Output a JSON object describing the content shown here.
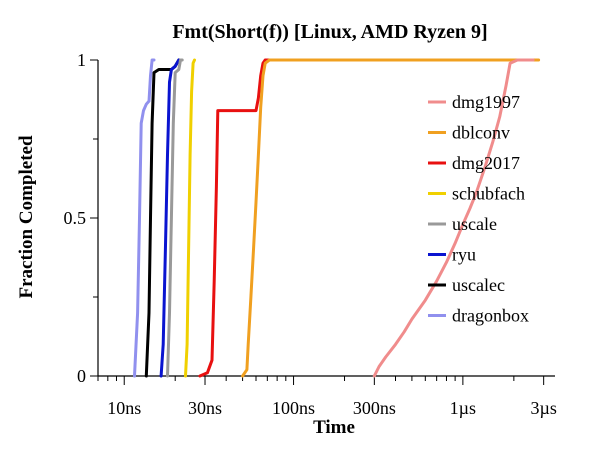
{
  "chart_data": {
    "type": "line",
    "title": "Fmt(Short(f)) [Linux, AMD Ryzen 9]",
    "xlabel": "Time",
    "ylabel": "Fraction Completed",
    "x_scale": "log",
    "x_unit": "ns",
    "xlim": [
      7,
      3500
    ],
    "ylim": [
      0,
      1
    ],
    "x_ticks": [
      {
        "value": 10,
        "label": "10ns"
      },
      {
        "value": 30,
        "label": "30ns"
      },
      {
        "value": 100,
        "label": "100ns"
      },
      {
        "value": 300,
        "label": "300ns"
      },
      {
        "value": 1000,
        "label": "1µs"
      },
      {
        "value": 3000,
        "label": "3µs"
      }
    ],
    "y_ticks": [
      {
        "value": 0,
        "label": "0"
      },
      {
        "value": 0.5,
        "label": "0.5"
      },
      {
        "value": 1,
        "label": "1"
      }
    ],
    "legend_position": "right",
    "series": [
      {
        "name": "dmg1997",
        "color": "#f08c8c",
        "points": [
          [
            300,
            0
          ],
          [
            320,
            0.03
          ],
          [
            350,
            0.06
          ],
          [
            400,
            0.1
          ],
          [
            450,
            0.14
          ],
          [
            500,
            0.18
          ],
          [
            600,
            0.24
          ],
          [
            700,
            0.3
          ],
          [
            800,
            0.36
          ],
          [
            900,
            0.42
          ],
          [
            1000,
            0.48
          ],
          [
            1100,
            0.53
          ],
          [
            1200,
            0.58
          ],
          [
            1350,
            0.66
          ],
          [
            1500,
            0.74
          ],
          [
            1650,
            0.82
          ],
          [
            1800,
            0.92
          ],
          [
            1900,
            0.99
          ],
          [
            2100,
            1
          ],
          [
            2600,
            1
          ]
        ]
      },
      {
        "name": "dblconv",
        "color": "#f0a020",
        "points": [
          [
            50,
            0
          ],
          [
            53,
            0.02
          ],
          [
            54,
            0.1
          ],
          [
            56,
            0.25
          ],
          [
            58,
            0.4
          ],
          [
            60,
            0.55
          ],
          [
            62,
            0.7
          ],
          [
            64,
            0.85
          ],
          [
            66,
            0.95
          ],
          [
            68,
            0.99
          ],
          [
            72,
            1
          ],
          [
            300,
            1
          ],
          [
            1000,
            1
          ],
          [
            2000,
            1
          ],
          [
            2800,
            1
          ]
        ]
      },
      {
        "name": "dmg2017",
        "color": "#e81010",
        "points": [
          [
            28,
            0
          ],
          [
            31,
            0.01
          ],
          [
            33,
            0.05
          ],
          [
            34,
            0.3
          ],
          [
            35,
            0.6
          ],
          [
            35.7,
            0.84
          ],
          [
            40,
            0.84
          ],
          [
            55,
            0.84
          ],
          [
            60,
            0.84
          ],
          [
            62,
            0.88
          ],
          [
            64,
            0.95
          ],
          [
            66,
            0.99
          ],
          [
            68,
            1
          ],
          [
            300,
            1
          ]
        ]
      },
      {
        "name": "schubfach",
        "color": "#f0d000",
        "points": [
          [
            23,
            0
          ],
          [
            23.5,
            0.1
          ],
          [
            24,
            0.4
          ],
          [
            24.5,
            0.7
          ],
          [
            25,
            0.9
          ],
          [
            25.5,
            0.99
          ],
          [
            26,
            1
          ]
        ]
      },
      {
        "name": "uscale",
        "color": "#999999",
        "points": [
          [
            18,
            0
          ],
          [
            18.5,
            0.2
          ],
          [
            19,
            0.5
          ],
          [
            19.5,
            0.8
          ],
          [
            20,
            0.96
          ],
          [
            21,
            0.97
          ],
          [
            21.5,
            1
          ],
          [
            22,
            1
          ]
        ]
      },
      {
        "name": "ryu",
        "color": "#0a14d0",
        "points": [
          [
            16.5,
            0
          ],
          [
            17,
            0.1
          ],
          [
            17.5,
            0.4
          ],
          [
            18,
            0.7
          ],
          [
            18.5,
            0.93
          ],
          [
            19,
            0.97
          ],
          [
            20,
            0.98
          ],
          [
            21,
            1
          ]
        ]
      },
      {
        "name": "uscalec",
        "color": "#000000",
        "points": [
          [
            13.5,
            0
          ],
          [
            14,
            0.2
          ],
          [
            14.3,
            0.5
          ],
          [
            14.6,
            0.8
          ],
          [
            15,
            0.96
          ],
          [
            16,
            0.97
          ],
          [
            17,
            0.97
          ],
          [
            19,
            0.97
          ],
          [
            20,
            0.98
          ],
          [
            21,
            1
          ]
        ]
      },
      {
        "name": "dragonbox",
        "color": "#9090ee",
        "points": [
          [
            11.5,
            0
          ],
          [
            12,
            0.2
          ],
          [
            12.3,
            0.5
          ],
          [
            12.6,
            0.8
          ],
          [
            13,
            0.84
          ],
          [
            13.5,
            0.86
          ],
          [
            14,
            0.87
          ],
          [
            14.3,
            0.95
          ],
          [
            14.6,
            1
          ],
          [
            15,
            1
          ]
        ]
      }
    ]
  }
}
